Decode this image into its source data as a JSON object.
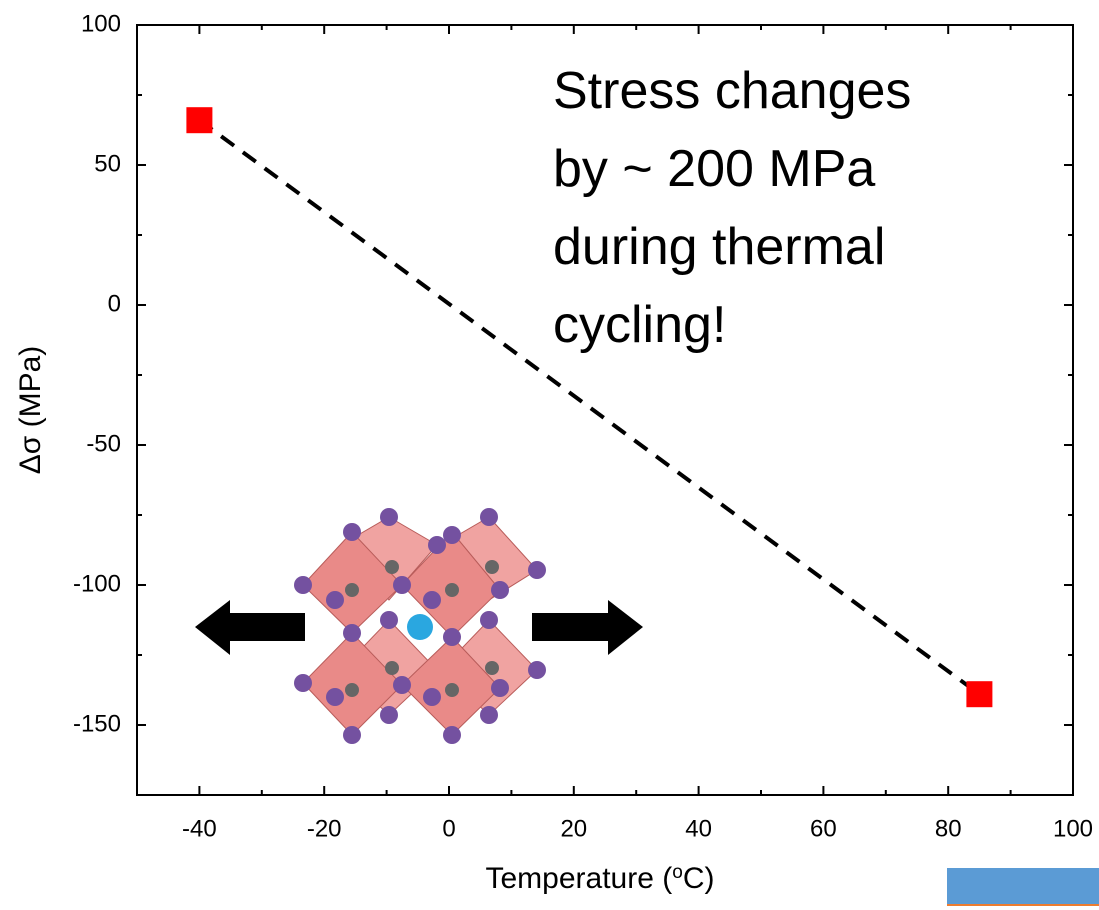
{
  "chart_data": {
    "type": "scatter",
    "x": [
      -40,
      85
    ],
    "values": [
      66,
      -139
    ],
    "marker_color": "#ff0000",
    "line_color": "#000000",
    "line_style": "dashed",
    "xlim": [
      -50,
      100
    ],
    "xticks": [
      -40,
      -20,
      0,
      20,
      40,
      60,
      80,
      100
    ],
    "ylim": [
      -175,
      100
    ],
    "yticks": [
      100,
      50,
      0,
      -50,
      -100,
      -150
    ],
    "xminorticks": [
      -30,
      -10,
      10,
      30,
      50,
      70,
      90
    ],
    "yminorticks": [
      75,
      25,
      -25,
      -75,
      -125
    ],
    "xlabel": [
      "Temperature (",
      "o",
      "C)"
    ],
    "ylabel": "Δσ (MPa)",
    "annotation": [
      "Stress changes",
      "by ~ 200 MPa",
      "during thermal",
      "cycling!"
    ]
  }
}
